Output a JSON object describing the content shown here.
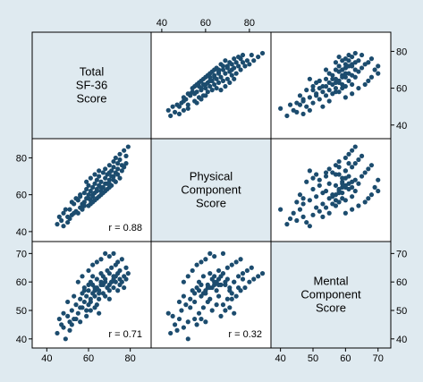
{
  "chart_data": {
    "type": "scatter",
    "variables": [
      {
        "key": "total",
        "label_lines": [
          "Total",
          "SF-36",
          "Score"
        ],
        "range": [
          36,
          87
        ],
        "ticks": [
          40,
          60,
          80
        ]
      },
      {
        "key": "physical",
        "label_lines": [
          "Physical",
          "Component",
          "Score"
        ],
        "range": [
          38,
          87
        ],
        "ticks": [
          40,
          60,
          80
        ]
      },
      {
        "key": "mental",
        "label_lines": [
          "Mental",
          "Component",
          "Score"
        ],
        "range": [
          39,
          72
        ],
        "ticks": [
          40,
          50,
          60,
          70
        ]
      }
    ],
    "correlations": [
      {
        "row": 1,
        "col": 0,
        "text": "r = 0.88"
      },
      {
        "row": 2,
        "col": 0,
        "text": "r = 0.71"
      },
      {
        "row": 2,
        "col": 1,
        "text": "r = 0.32"
      }
    ],
    "points": [
      [
        45,
        44,
        42
      ],
      [
        47,
        46,
        45
      ],
      [
        48,
        50,
        44
      ],
      [
        50,
        45,
        48
      ],
      [
        51,
        52,
        46
      ],
      [
        52,
        49,
        50
      ],
      [
        53,
        55,
        47
      ],
      [
        54,
        51,
        52
      ],
      [
        55,
        57,
        49
      ],
      [
        56,
        53,
        54
      ],
      [
        56,
        59,
        51
      ],
      [
        57,
        55,
        56
      ],
      [
        58,
        61,
        53
      ],
      [
        58,
        56,
        58
      ],
      [
        59,
        63,
        50
      ],
      [
        59,
        58,
        55
      ],
      [
        60,
        60,
        57
      ],
      [
        60,
        65,
        52
      ],
      [
        61,
        57,
        60
      ],
      [
        61,
        62,
        54
      ],
      [
        62,
        64,
        59
      ],
      [
        62,
        59,
        62
      ],
      [
        63,
        66,
        55
      ],
      [
        63,
        61,
        58
      ],
      [
        64,
        68,
        52
      ],
      [
        64,
        63,
        61
      ],
      [
        65,
        65,
        57
      ],
      [
        65,
        70,
        54
      ],
      [
        66,
        62,
        63
      ],
      [
        66,
        67,
        59
      ],
      [
        67,
        72,
        56
      ],
      [
        67,
        64,
        62
      ],
      [
        68,
        69,
        60
      ],
      [
        68,
        74,
        55
      ],
      [
        69,
        66,
        64
      ],
      [
        69,
        71,
        58
      ],
      [
        70,
        76,
        57
      ],
      [
        70,
        68,
        63
      ],
      [
        71,
        73,
        60
      ],
      [
        71,
        70,
        65
      ],
      [
        72,
        78,
        58
      ],
      [
        72,
        75,
        62
      ],
      [
        73,
        72,
        66
      ],
      [
        73,
        80,
        60
      ],
      [
        74,
        77,
        63
      ],
      [
        74,
        74,
        67
      ],
      [
        75,
        82,
        61
      ],
      [
        75,
        79,
        64
      ],
      [
        76,
        76,
        68
      ],
      [
        77,
        84,
        62
      ],
      [
        78,
        81,
        65
      ],
      [
        79,
        86,
        63
      ],
      [
        55,
        50,
        60
      ],
      [
        57,
        52,
        62
      ],
      [
        60,
        54,
        64
      ],
      [
        62,
        56,
        66
      ],
      [
        64,
        58,
        67
      ],
      [
        66,
        60,
        68
      ],
      [
        68,
        62,
        70
      ],
      [
        70,
        64,
        69
      ],
      [
        59,
        67,
        48
      ],
      [
        61,
        69,
        50
      ],
      [
        63,
        71,
        51
      ],
      [
        65,
        73,
        49
      ],
      [
        58,
        54,
        57
      ],
      [
        60,
        58,
        59
      ],
      [
        62,
        60,
        56
      ],
      [
        64,
        62,
        58
      ],
      [
        66,
        64,
        60
      ],
      [
        68,
        66,
        61
      ],
      [
        70,
        66,
        59
      ],
      [
        72,
        70,
        61
      ],
      [
        52,
        56,
        45
      ],
      [
        54,
        58,
        47
      ],
      [
        56,
        60,
        46
      ],
      [
        50,
        48,
        53
      ],
      [
        53,
        50,
        55
      ],
      [
        57,
        53,
        51
      ],
      [
        61,
        55,
        53
      ],
      [
        63,
        57,
        57
      ],
      [
        65,
        59,
        56
      ],
      [
        67,
        61,
        59
      ],
      [
        69,
        63,
        58
      ],
      [
        71,
        65,
        60
      ],
      [
        73,
        67,
        62
      ],
      [
        75,
        69,
        59
      ],
      [
        74,
        71,
        57
      ],
      [
        76,
        73,
        60
      ],
      [
        77,
        75,
        58
      ],
      [
        78,
        77,
        61
      ],
      [
        49,
        52,
        40
      ],
      [
        51,
        47,
        43
      ],
      [
        46,
        48,
        47
      ],
      [
        48,
        43,
        49
      ],
      [
        72,
        68,
        70
      ],
      [
        70,
        72,
        54
      ]
    ]
  }
}
